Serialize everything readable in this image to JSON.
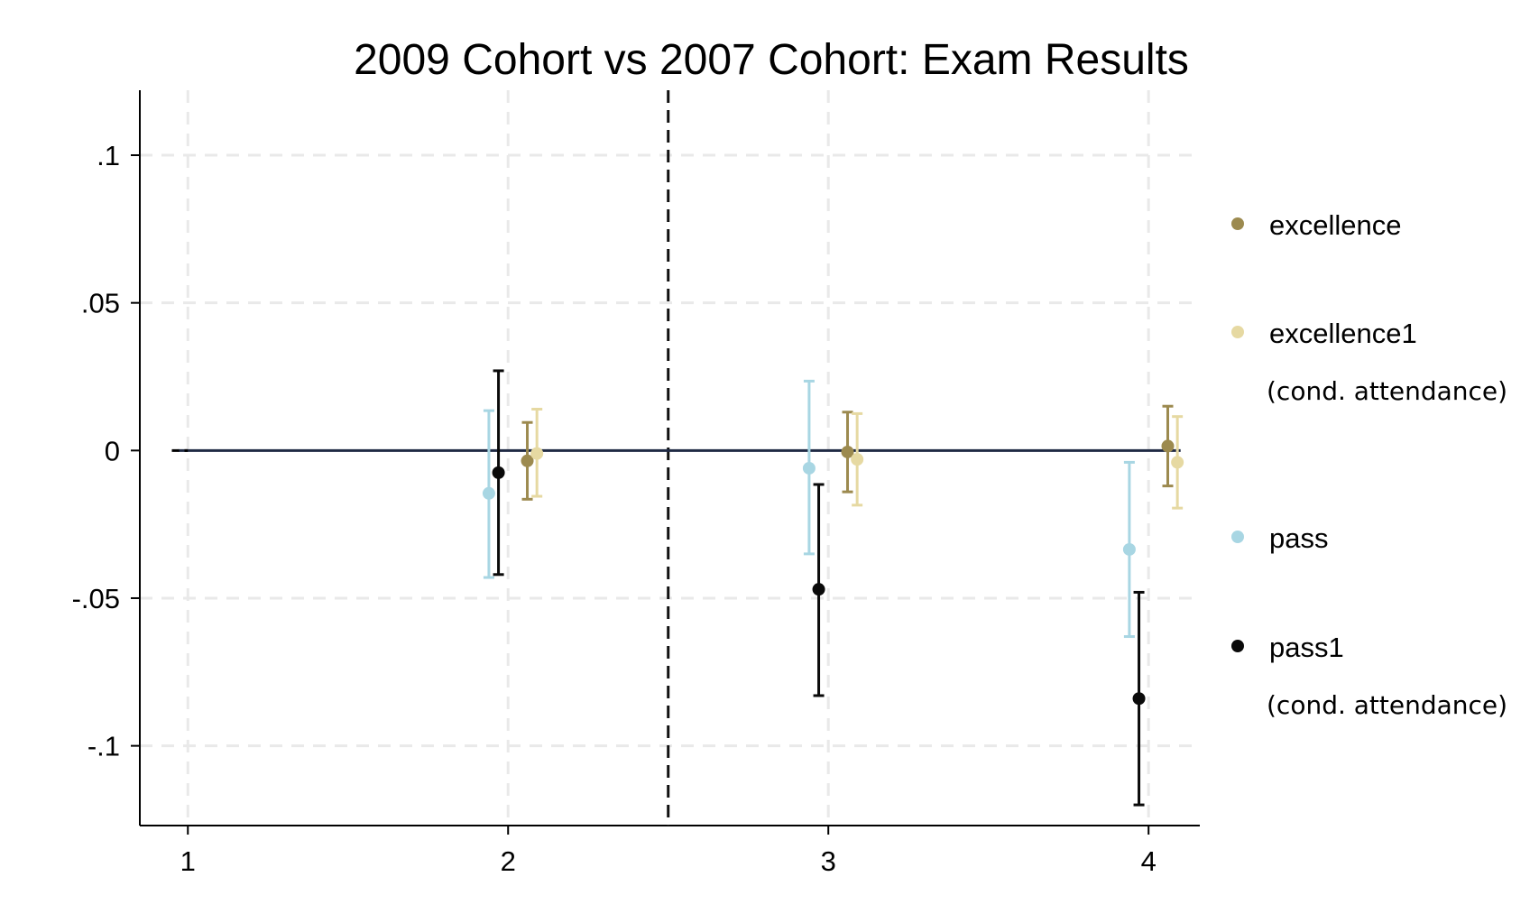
{
  "chart_data": {
    "type": "scatter",
    "subtype": "coefficient plot with confidence intervals",
    "title": "2009 Cohort vs 2007 Cohort: Exam Results",
    "xlabel": "",
    "ylabel": "",
    "x_ticks": [
      "1",
      "2",
      "3",
      "4"
    ],
    "y_ticks": [
      {
        "value": 0.1,
        "label": ".1"
      },
      {
        "value": 0.05,
        "label": ".05"
      },
      {
        "value": 0,
        "label": "0"
      },
      {
        "value": -0.05,
        "label": "-.05"
      },
      {
        "value": -0.1,
        "label": "-.1"
      }
    ],
    "xlim": [
      0.85,
      4.16
    ],
    "ylim": [
      -0.127,
      0.122
    ],
    "grid": true,
    "reference_line_y": 0,
    "reference_line_x": 2.5,
    "legend_position": "right",
    "series": [
      {
        "name": "excellence",
        "note": "",
        "color": "#9c8a4f",
        "points": [
          {
            "x": 2.06,
            "y": -0.0035,
            "lo": -0.0165,
            "hi": 0.0095
          },
          {
            "x": 3.06,
            "y": -0.0005,
            "lo": -0.014,
            "hi": 0.013
          },
          {
            "x": 4.06,
            "y": 0.0015,
            "lo": -0.012,
            "hi": 0.015
          }
        ]
      },
      {
        "name": "excellence1",
        "note": "(cond. attendance)",
        "color": "#e6d9a2",
        "points": [
          {
            "x": 2.09,
            "y": -0.001,
            "lo": -0.0155,
            "hi": 0.014
          },
          {
            "x": 3.09,
            "y": -0.003,
            "lo": -0.0185,
            "hi": 0.0125
          },
          {
            "x": 4.09,
            "y": -0.004,
            "lo": -0.0195,
            "hi": 0.0115
          }
        ]
      },
      {
        "name": "pass",
        "note": "",
        "color": "#a8d6e3",
        "points": [
          {
            "x": 1.94,
            "y": -0.0145,
            "lo": -0.043,
            "hi": 0.0135
          },
          {
            "x": 2.94,
            "y": -0.006,
            "lo": -0.035,
            "hi": 0.0235
          },
          {
            "x": 3.94,
            "y": -0.0335,
            "lo": -0.063,
            "hi": -0.004
          }
        ]
      },
      {
        "name": "pass1",
        "note": "(cond. attendance)",
        "color": "#0a0a0a",
        "points": [
          {
            "x": 1.97,
            "y": -0.0075,
            "lo": -0.042,
            "hi": 0.027
          },
          {
            "x": 2.97,
            "y": -0.047,
            "lo": -0.083,
            "hi": -0.0115
          },
          {
            "x": 3.97,
            "y": -0.084,
            "lo": -0.12,
            "hi": -0.048
          }
        ]
      }
    ]
  }
}
